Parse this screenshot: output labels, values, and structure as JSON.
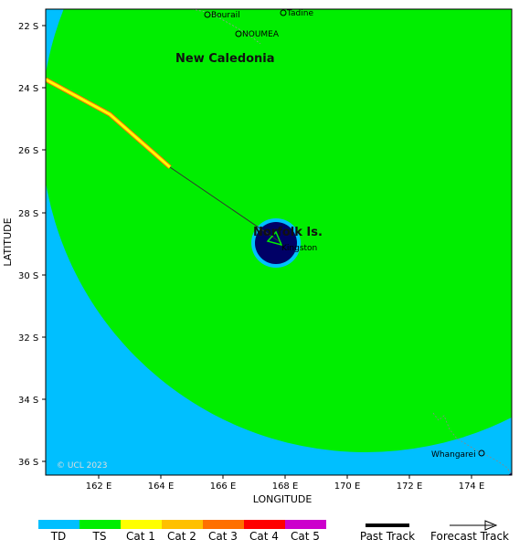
{
  "map": {
    "credit": "© UCL 2023",
    "xlabel": "LONGITUDE",
    "ylabel": "LATITUDE",
    "lat_ticks": [
      "22 S",
      "24 S",
      "26 S",
      "28 S",
      "30 S",
      "32 S",
      "34 S",
      "36 S"
    ],
    "lon_ticks": [
      "162 E",
      "164 E",
      "166 E",
      "168 E",
      "170 E",
      "172 E",
      "174 E"
    ],
    "places": {
      "bourail": "Bourail",
      "tadine": "Tadine",
      "noumea": "NOUMEA",
      "new_caledonia": "New Caledonia",
      "norfolk": "Norfolk Is.",
      "kingston": "Kingston",
      "whangarei": "Whangarei"
    }
  },
  "legend": {
    "categories": [
      {
        "label": "TD",
        "color": "#00bfff"
      },
      {
        "label": "TS",
        "color": "#00ee00"
      },
      {
        "label": "Cat 1",
        "color": "#ffff00"
      },
      {
        "label": "Cat 2",
        "color": "#ffc000"
      },
      {
        "label": "Cat 3",
        "color": "#ff7000"
      },
      {
        "label": "Cat 4",
        "color": "#ff0000"
      },
      {
        "label": "Cat 5",
        "color": "#cc00cc"
      }
    ],
    "past_track": "Past Track",
    "forecast_track": "Forecast Track"
  },
  "colors": {
    "td_zone": "#00bfff",
    "ts_zone": "#00ee00",
    "eye": "#000066",
    "outer": "#000066",
    "past_track": "#ffff00",
    "past_track_edge": "#ff7000"
  }
}
